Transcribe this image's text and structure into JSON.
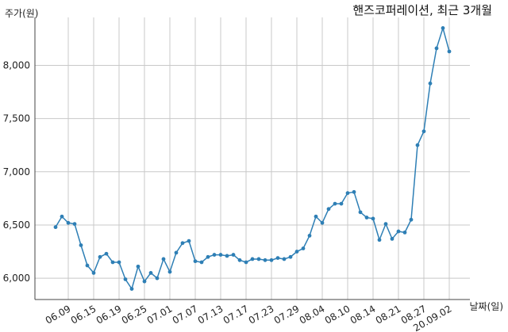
{
  "chart_data": {
    "type": "line",
    "title": "핸즈코퍼레이션, 최근 3개월",
    "xlabel": "날짜(일)",
    "ylabel": "주가(원)",
    "ylim": [
      5800,
      8450
    ],
    "yticks": [
      6000,
      6500,
      7000,
      7500,
      8000
    ],
    "ytick_labels": [
      "6,000",
      "6,500",
      "7,000",
      "7,500",
      "8,000"
    ],
    "xtick_labels": [
      "06.09",
      "06.15",
      "06.19",
      "06.25",
      "07.01",
      "07.07",
      "07.13",
      "07.17",
      "07.23",
      "07.29",
      "08.04",
      "08.10",
      "08.14",
      "08.21",
      "08.27",
      "20.09.02"
    ],
    "xtick_index": [
      2,
      6,
      10,
      14,
      18,
      22,
      26,
      30,
      34,
      38,
      42,
      46,
      50,
      54,
      58,
      62
    ],
    "grid": true,
    "colors": {
      "line": "#2e7fb5",
      "grid": "#c8c8c8",
      "axis": "#444444"
    },
    "series": [
      {
        "values": [
          6480,
          6580,
          6520,
          6510,
          6310,
          6120,
          6050,
          6200,
          6230,
          6150,
          6150,
          5990,
          5900,
          6110,
          5970,
          6050,
          6000,
          6180,
          6060,
          6240,
          6330,
          6350,
          6160,
          6150,
          6200,
          6220,
          6220,
          6210,
          6220,
          6170,
          6150,
          6180,
          6180,
          6170,
          6170,
          6190,
          6180,
          6200,
          6250,
          6280,
          6400,
          6580,
          6520,
          6650,
          6700,
          6700,
          6800,
          6810,
          6620,
          6570,
          6560,
          6360,
          6510,
          6370,
          6440,
          6430,
          6550,
          7250,
          7380,
          7830,
          8160,
          8350,
          8130
        ]
      }
    ]
  }
}
